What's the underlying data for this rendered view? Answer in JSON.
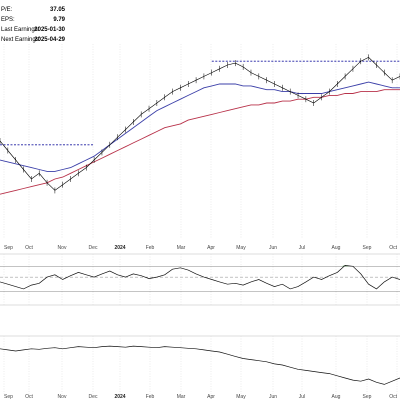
{
  "info": {
    "pe_label": "P/E:",
    "pe_value": "37.05",
    "eps_label": "EPS:",
    "eps_value": "9.79",
    "last_label": "Last Earnings:",
    "last_value": "2025-01-30",
    "next_label": "Next Earnings:",
    "next_value": "2025-04-29"
  },
  "chart_data": {
    "type": "line",
    "title": "",
    "x_ticks": [
      "Sep",
      "Oct",
      "Nov",
      "Dec",
      "2024",
      "Feb",
      "Mar",
      "Apr",
      "May",
      "Jun",
      "Jul",
      "Aug",
      "Sep",
      "Oct"
    ],
    "bold_tick": "2024",
    "grid": true,
    "colors": {
      "price": "#000000",
      "ma_short": "#3b3fa8",
      "ma_long": "#b8324a",
      "resistance": "#1a1aa0",
      "overbought_fill": "#3a8a3a",
      "reference": "#888888"
    },
    "price_panel": {
      "price": [
        0.5,
        0.45,
        0.4,
        0.35,
        0.3,
        0.33,
        0.28,
        0.24,
        0.27,
        0.3,
        0.33,
        0.36,
        0.4,
        0.44,
        0.48,
        0.52,
        0.56,
        0.6,
        0.64,
        0.67,
        0.7,
        0.73,
        0.76,
        0.78,
        0.8,
        0.82,
        0.84,
        0.86,
        0.88,
        0.9,
        0.91,
        0.89,
        0.86,
        0.84,
        0.82,
        0.8,
        0.78,
        0.76,
        0.74,
        0.72,
        0.7,
        0.73,
        0.76,
        0.8,
        0.84,
        0.88,
        0.92,
        0.94,
        0.9,
        0.86,
        0.82,
        0.84
      ],
      "ma_short": [
        0.4,
        0.39,
        0.38,
        0.37,
        0.36,
        0.35,
        0.34,
        0.34,
        0.35,
        0.36,
        0.38,
        0.4,
        0.42,
        0.45,
        0.48,
        0.51,
        0.54,
        0.57,
        0.6,
        0.63,
        0.66,
        0.68,
        0.7,
        0.72,
        0.74,
        0.76,
        0.78,
        0.79,
        0.8,
        0.8,
        0.8,
        0.79,
        0.79,
        0.78,
        0.77,
        0.77,
        0.76,
        0.76,
        0.75,
        0.75,
        0.75,
        0.75,
        0.76,
        0.77,
        0.78,
        0.79,
        0.8,
        0.81,
        0.8,
        0.79,
        0.78,
        0.78
      ],
      "ma_long": [
        0.22,
        0.23,
        0.24,
        0.25,
        0.26,
        0.27,
        0.28,
        0.3,
        0.31,
        0.33,
        0.35,
        0.37,
        0.39,
        0.41,
        0.43,
        0.45,
        0.47,
        0.49,
        0.51,
        0.53,
        0.55,
        0.57,
        0.58,
        0.59,
        0.61,
        0.62,
        0.63,
        0.64,
        0.65,
        0.66,
        0.67,
        0.68,
        0.69,
        0.69,
        0.7,
        0.7,
        0.71,
        0.71,
        0.72,
        0.72,
        0.73,
        0.73,
        0.74,
        0.74,
        0.75,
        0.75,
        0.76,
        0.76,
        0.76,
        0.77,
        0.77,
        0.77
      ],
      "resistance_levels": [
        {
          "from": 0,
          "to": 12,
          "level": 0.48
        },
        {
          "from": 27,
          "to": 52,
          "level": 0.92
        }
      ]
    },
    "oscillator_panel": {
      "values": [
        0.45,
        0.4,
        0.35,
        0.3,
        0.38,
        0.42,
        0.55,
        0.6,
        0.5,
        0.58,
        0.65,
        0.6,
        0.55,
        0.62,
        0.68,
        0.6,
        0.55,
        0.62,
        0.58,
        0.52,
        0.55,
        0.6,
        0.72,
        0.75,
        0.7,
        0.62,
        0.55,
        0.5,
        0.45,
        0.4,
        0.42,
        0.38,
        0.45,
        0.5,
        0.42,
        0.35,
        0.4,
        0.3,
        0.35,
        0.45,
        0.55,
        0.5,
        0.58,
        0.65,
        0.8,
        0.78,
        0.62,
        0.4,
        0.3,
        0.45,
        0.55,
        0.5
      ],
      "upper_band": 0.78,
      "lower_band": 0.25,
      "midline": 0.55
    },
    "lower_panel": {
      "values": [
        0.8,
        0.78,
        0.76,
        0.78,
        0.8,
        0.79,
        0.81,
        0.82,
        0.8,
        0.82,
        0.84,
        0.83,
        0.82,
        0.84,
        0.85,
        0.84,
        0.83,
        0.85,
        0.84,
        0.83,
        0.82,
        0.84,
        0.83,
        0.82,
        0.81,
        0.8,
        0.78,
        0.76,
        0.74,
        0.7,
        0.66,
        0.62,
        0.6,
        0.58,
        0.56,
        0.52,
        0.5,
        0.46,
        0.42,
        0.4,
        0.38,
        0.36,
        0.34,
        0.3,
        0.26,
        0.22,
        0.2,
        0.24,
        0.18,
        0.14,
        0.2,
        0.26
      ]
    }
  }
}
